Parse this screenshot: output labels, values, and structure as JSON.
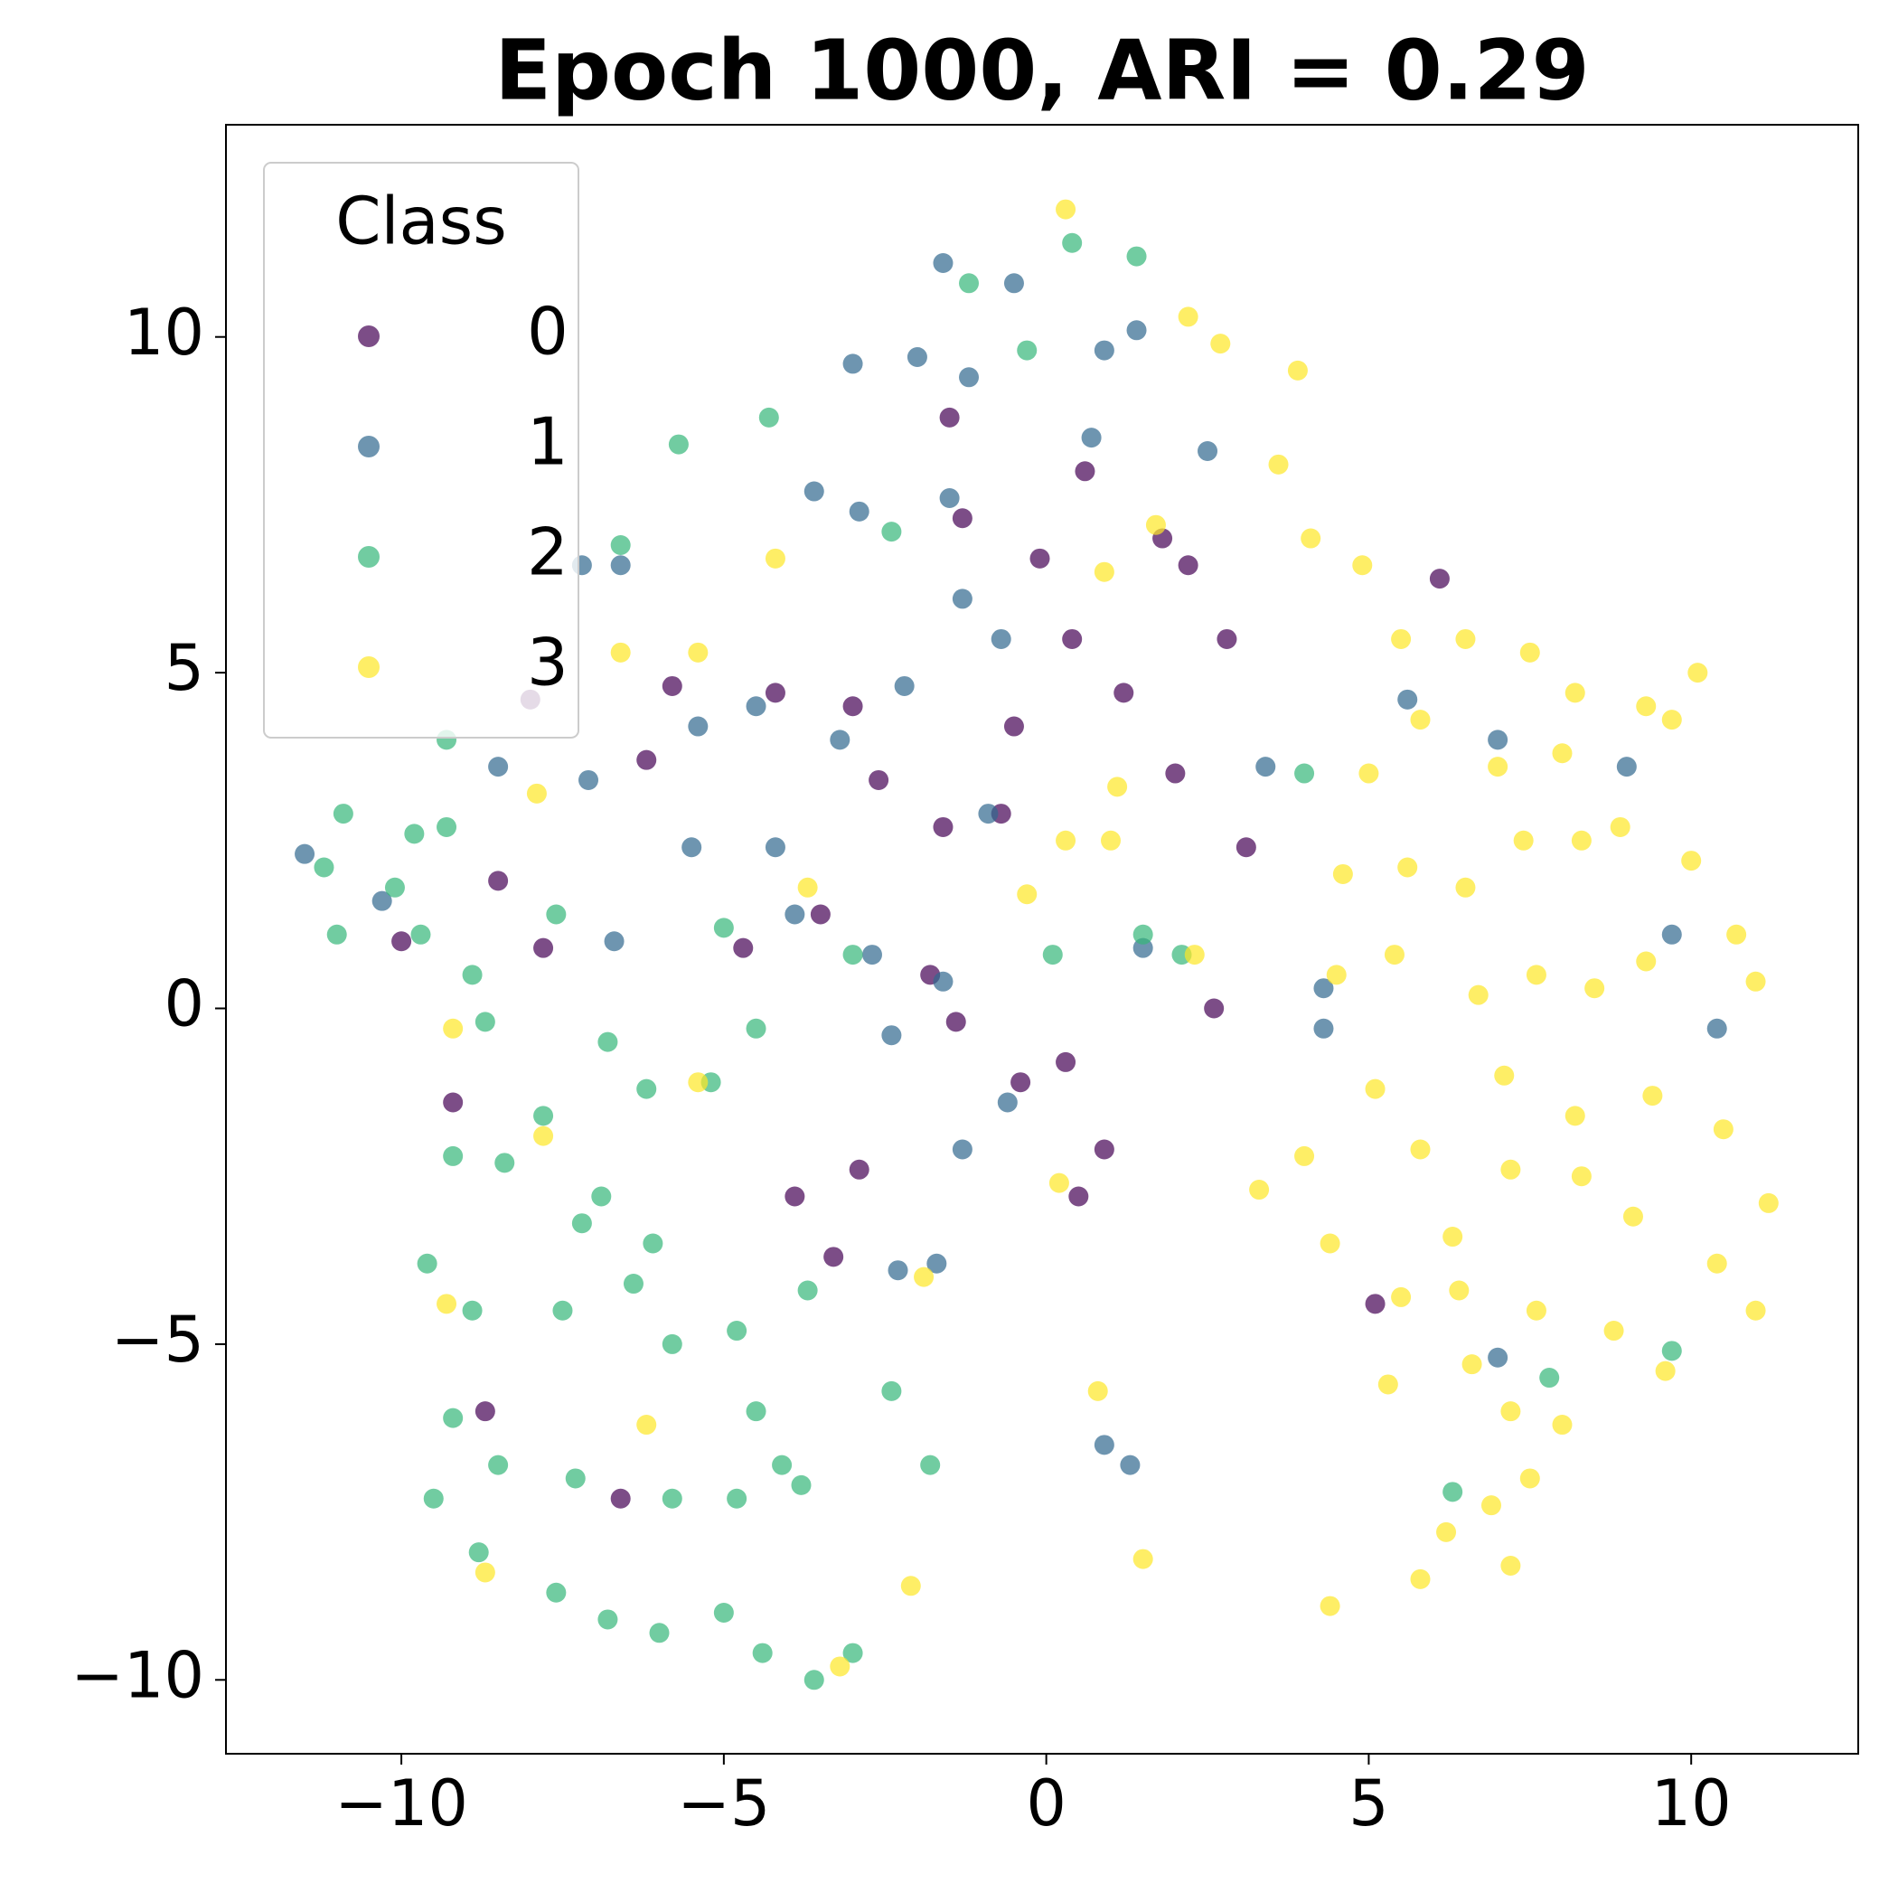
{
  "chart_data": {
    "type": "scatter",
    "title": "Epoch 1000,  ARI = 0.29",
    "legend_title": "Class",
    "legend": "upper left",
    "grid": false,
    "alpha": 0.7,
    "xlim": [
      -12.72,
      12.59
    ],
    "ylim": [
      -11.1,
      13.16
    ],
    "xticks": [
      {
        "value": -10,
        "label": "−10"
      },
      {
        "value": -5,
        "label": "−5"
      },
      0,
      5,
      10
    ],
    "yticks": [
      {
        "value": -10,
        "label": "−10"
      },
      {
        "value": -5,
        "label": "−5"
      },
      0,
      5,
      10
    ],
    "series": [
      {
        "name": "0",
        "color": "#440154",
        "x": [
          -8.5,
          -7.8,
          -6.2,
          -5.8,
          -4.2,
          -3,
          -1.6,
          -0.7,
          -0.5,
          0.4,
          1.2,
          2,
          2.8,
          3.1,
          -1.3,
          -0.1,
          0.6,
          -1.5,
          1.8,
          2.2,
          6.1,
          -2.6,
          -4.7,
          -3.5,
          -1.4,
          -0.4,
          0.3,
          0.9,
          -9.2,
          -8.7,
          -6.6,
          -3.9,
          -2.9,
          0.5,
          -1.8,
          2.6,
          -10,
          -8,
          -3.3,
          5.1
        ],
        "values": [
          1.9,
          0.9,
          3.7,
          4.8,
          4.7,
          4.5,
          2.7,
          2.9,
          4.2,
          5.5,
          4.7,
          3.5,
          5.5,
          2.4,
          7.3,
          6.7,
          8,
          8.8,
          7,
          6.6,
          6.4,
          3.4,
          0.9,
          1.4,
          -0.2,
          -1.1,
          -0.8,
          -2.1,
          -1.4,
          -6,
          -7.3,
          -2.8,
          -2.4,
          -2.8,
          0.5,
          0,
          1,
          4.6,
          -3.7,
          -4.4
        ]
      },
      {
        "name": "1",
        "color": "#31688e",
        "x": [
          -0.5,
          -1.6,
          0.9,
          1.4,
          -2,
          -3,
          -1.2,
          0.7,
          2.5,
          -3.6,
          -2.9,
          -1.5,
          -1.3,
          -0.7,
          -2.2,
          -3.2,
          -4.5,
          -5.4,
          -6.6,
          -7.1,
          -8.5,
          -11.5,
          -10.3,
          -6.7,
          -5.5,
          -4.2,
          -3.9,
          -2.7,
          -1.6,
          -2.4,
          -0.6,
          -1.3,
          -1.7,
          -2.3,
          0.9,
          1.3,
          3.4,
          1.5,
          4.3,
          4.3,
          5.6,
          7,
          9,
          10.4,
          9.7,
          7,
          -7.2,
          -0.9
        ],
        "values": [
          10.8,
          11.1,
          9.8,
          10.1,
          9.7,
          9.6,
          9.4,
          8.5,
          8.3,
          7.7,
          7.4,
          7.6,
          6.1,
          5.5,
          4.8,
          4,
          4.5,
          4.2,
          6.6,
          3.4,
          3.6,
          2.3,
          1.6,
          1,
          2.4,
          2.4,
          1.4,
          0.8,
          0.4,
          -0.4,
          -1.4,
          -2.1,
          -3.8,
          -3.9,
          -6.5,
          -6.8,
          3.6,
          0.9,
          0.3,
          -0.3,
          4.6,
          4,
          3.6,
          -0.3,
          1.1,
          -5.2,
          6.6,
          2.9
        ]
      },
      {
        "name": "2",
        "color": "#35b779",
        "x": [
          -11.2,
          -10.9,
          -11,
          -10.1,
          -9.7,
          -9.3,
          -8.9,
          -8.7,
          -9.3,
          -7.6,
          -6.8,
          -6.2,
          -5.2,
          -4.5,
          -7.8,
          -9.2,
          -8.4,
          -6.9,
          -6.1,
          -7.2,
          -9.6,
          -8.9,
          -7.5,
          -6.4,
          -5.8,
          -9.2,
          -8.5,
          -7.3,
          -5.8,
          -4.8,
          -3.8,
          -9.5,
          -8.8,
          -7.6,
          -6.8,
          -6,
          -5,
          -4.4,
          -3.6,
          -3,
          -4.5,
          -4.1,
          -2.4,
          -1.8,
          -4.8,
          -3.7,
          -5,
          -3,
          -6.6,
          -5.7,
          -4.3,
          -2.4,
          -1.2,
          0.4,
          1.4,
          -0.3,
          1.5,
          2.1,
          4,
          7.8,
          9.7,
          6.3,
          -9.8,
          0.1
        ],
        "values": [
          2.1,
          2.9,
          1.1,
          1.8,
          1.1,
          2.7,
          0.5,
          -0.2,
          4,
          1.4,
          -0.5,
          -1.2,
          -1.1,
          -0.3,
          -1.6,
          -2.2,
          -2.3,
          -2.8,
          -3.5,
          -3.2,
          -3.8,
          -4.5,
          -4.5,
          -4.1,
          -5,
          -6.1,
          -6.8,
          -7,
          -7.3,
          -7.3,
          -7.1,
          -7.3,
          -8.1,
          -8.7,
          -9.1,
          -9.3,
          -9,
          -9.6,
          -10,
          -9.6,
          -6,
          -6.8,
          -5.7,
          -6.8,
          -4.8,
          -4.2,
          1.2,
          0.8,
          6.9,
          8.4,
          8.8,
          7.1,
          10.8,
          11.4,
          11.2,
          9.8,
          1.1,
          0.8,
          3.5,
          -5.5,
          -5.1,
          -7.2,
          2.6,
          0.8
        ]
      },
      {
        "name": "3",
        "color": "#fde725",
        "x": [
          5.5,
          6.5,
          7.5,
          8.2,
          9.3,
          10.1,
          9.7,
          7,
          8,
          5.8,
          5,
          4.6,
          5.6,
          6.5,
          7.4,
          8.3,
          8.9,
          10,
          10.7,
          11,
          9.3,
          8.5,
          7.6,
          6.7,
          5.4,
          4.5,
          7.1,
          8.2,
          9.4,
          10.5,
          11.2,
          10.4,
          11,
          9.1,
          8.3,
          7.2,
          6.3,
          5.8,
          5.1,
          4,
          3.3,
          4.4,
          5.5,
          6.4,
          7.6,
          8.8,
          9.6,
          6.6,
          7.2,
          8,
          7.5,
          6.9,
          6.2,
          7.2,
          5.8,
          4.4,
          5.3,
          4.1,
          4.9,
          3.6,
          3.9,
          2.7,
          2.2,
          1.7,
          0.3,
          0.9,
          1.1,
          0.3,
          -0.3,
          -4.2,
          -7.9,
          -5.4,
          -9.2,
          -9.3,
          -8.7,
          -5.4,
          -3.7,
          0.2,
          0.8,
          1.5,
          -1.9,
          -2.1,
          -3.2,
          -7.8,
          -6.2,
          2.3,
          -6.6,
          1
        ],
        "values": [
          5.5,
          5.5,
          5.3,
          4.7,
          4.5,
          5,
          4.3,
          3.6,
          3.8,
          4.3,
          3.5,
          2,
          2.1,
          1.8,
          2.5,
          2.5,
          2.7,
          2.2,
          1.1,
          0.4,
          0.7,
          0.3,
          0.5,
          0.2,
          0.8,
          0.5,
          -1,
          -1.6,
          -1.3,
          -1.8,
          -2.9,
          -3.8,
          -4.5,
          -3.1,
          -2.5,
          -2.4,
          -3.4,
          -2.1,
          -1.2,
          -2.2,
          -2.7,
          -3.5,
          -4.3,
          -4.2,
          -4.5,
          -4.8,
          -5.4,
          -5.3,
          -6,
          -6.2,
          -7,
          -7.4,
          -7.8,
          -8.3,
          -8.5,
          -8.9,
          -5.6,
          7,
          6.6,
          8.1,
          9.5,
          9.9,
          10.3,
          7.2,
          11.9,
          6.5,
          3.3,
          2.5,
          1.7,
          6.7,
          3.2,
          5.3,
          -0.3,
          -4.4,
          -8.4,
          -1.1,
          1.8,
          -2.6,
          -5.7,
          -8.2,
          -4,
          -8.6,
          -9.8,
          -1.9,
          -6.2,
          0.8,
          5.3,
          2.5
        ]
      }
    ]
  }
}
